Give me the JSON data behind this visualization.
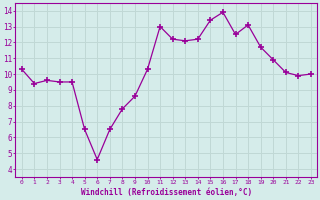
{
  "x": [
    0,
    1,
    2,
    3,
    4,
    5,
    6,
    7,
    8,
    9,
    10,
    11,
    12,
    13,
    14,
    15,
    16,
    17,
    18,
    19,
    20,
    21,
    22,
    23
  ],
  "y": [
    10.3,
    9.4,
    9.6,
    9.5,
    9.5,
    6.5,
    4.6,
    6.5,
    7.8,
    8.6,
    10.3,
    13.0,
    12.2,
    12.1,
    12.2,
    13.4,
    13.9,
    12.5,
    13.1,
    11.7,
    10.9,
    10.1,
    9.9,
    10.0
  ],
  "line_color": "#990099",
  "marker": "+",
  "marker_size": 4,
  "xlabel": "Windchill (Refroidissement éolien,°C)",
  "ylabel": "",
  "xlim": [
    -0.5,
    23.5
  ],
  "ylim": [
    3.5,
    14.5
  ],
  "yticks": [
    4,
    5,
    6,
    7,
    8,
    9,
    10,
    11,
    12,
    13,
    14
  ],
  "xticks": [
    0,
    1,
    2,
    3,
    4,
    5,
    6,
    7,
    8,
    9,
    10,
    11,
    12,
    13,
    14,
    15,
    16,
    17,
    18,
    19,
    20,
    21,
    22,
    23
  ],
  "bg_color": "#d5ecea",
  "grid_color": "#c0d8d5",
  "axis_color": "#990099",
  "tick_color": "#990099",
  "label_color": "#990099",
  "font_family": "monospace"
}
